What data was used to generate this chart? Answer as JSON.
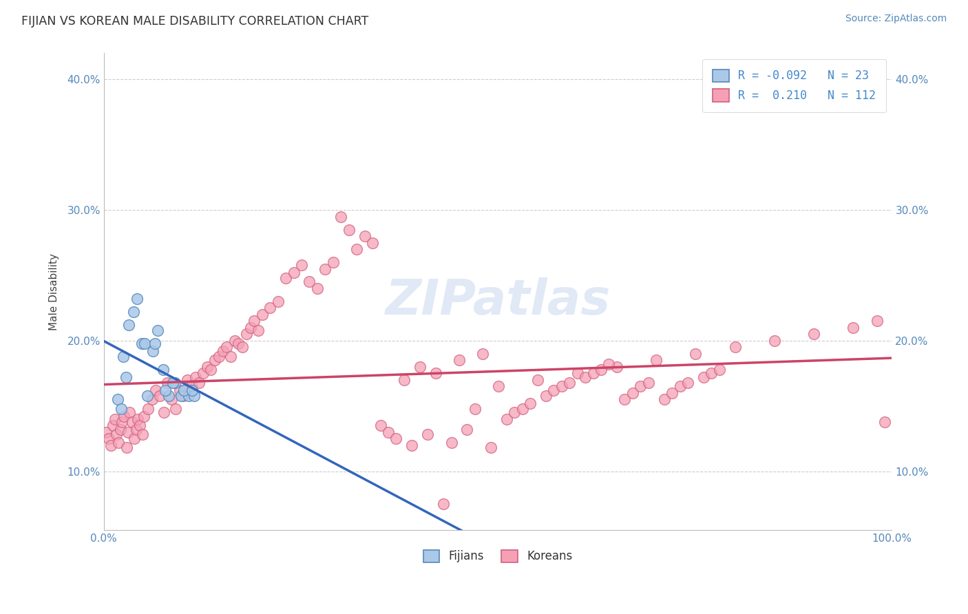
{
  "title": "FIJIAN VS KOREAN MALE DISABILITY CORRELATION CHART",
  "ylabel": "Male Disability",
  "source": "Source: ZipAtlas.com",
  "xlim": [
    0.0,
    1.0
  ],
  "ylim": [
    0.055,
    0.42
  ],
  "yticks": [
    0.1,
    0.2,
    0.3,
    0.4
  ],
  "ytick_labels": [
    "10.0%",
    "20.0%",
    "30.0%",
    "40.0%"
  ],
  "xticks": [
    0.0,
    1.0
  ],
  "xtick_labels": [
    "0.0%",
    "100.0%"
  ],
  "fijian_face": "#aac8e8",
  "fijian_edge": "#5588bb",
  "korean_face": "#f5a0b5",
  "korean_edge": "#d06080",
  "fijian_R": -0.092,
  "fijian_N": 23,
  "korean_R": 0.21,
  "korean_N": 112,
  "fijian_x": [
    0.018,
    0.022,
    0.025,
    0.028,
    0.032,
    0.038,
    0.042,
    0.048,
    0.055,
    0.062,
    0.068,
    0.075,
    0.082,
    0.09,
    0.098,
    0.108,
    0.115,
    0.052,
    0.065,
    0.078,
    0.088,
    0.102,
    0.112
  ],
  "fijian_y": [
    0.155,
    0.148,
    0.188,
    0.172,
    0.212,
    0.222,
    0.232,
    0.198,
    0.158,
    0.192,
    0.208,
    0.178,
    0.158,
    0.168,
    0.158,
    0.158,
    0.158,
    0.198,
    0.198,
    0.162,
    0.168,
    0.162,
    0.162
  ],
  "korean_x": [
    0.003,
    0.006,
    0.009,
    0.012,
    0.014,
    0.016,
    0.019,
    0.021,
    0.023,
    0.026,
    0.029,
    0.031,
    0.033,
    0.036,
    0.039,
    0.041,
    0.043,
    0.046,
    0.049,
    0.051,
    0.056,
    0.061,
    0.066,
    0.071,
    0.076,
    0.081,
    0.086,
    0.091,
    0.096,
    0.101,
    0.106,
    0.111,
    0.116,
    0.121,
    0.126,
    0.131,
    0.136,
    0.141,
    0.146,
    0.151,
    0.156,
    0.161,
    0.166,
    0.171,
    0.176,
    0.181,
    0.186,
    0.191,
    0.196,
    0.201,
    0.211,
    0.221,
    0.231,
    0.241,
    0.251,
    0.261,
    0.271,
    0.281,
    0.291,
    0.301,
    0.311,
    0.321,
    0.331,
    0.341,
    0.351,
    0.381,
    0.401,
    0.421,
    0.451,
    0.481,
    0.501,
    0.551,
    0.601,
    0.651,
    0.701,
    0.751,
    0.801,
    0.851,
    0.901,
    0.951,
    0.981,
    0.991,
    0.361,
    0.371,
    0.391,
    0.411,
    0.441,
    0.461,
    0.471,
    0.431,
    0.491,
    0.511,
    0.521,
    0.531,
    0.541,
    0.561,
    0.571,
    0.581,
    0.591,
    0.611,
    0.621,
    0.631,
    0.641,
    0.661,
    0.671,
    0.681,
    0.691,
    0.711,
    0.721,
    0.731,
    0.741,
    0.761,
    0.771,
    0.781
  ],
  "korean_y": [
    0.13,
    0.125,
    0.12,
    0.135,
    0.14,
    0.128,
    0.122,
    0.132,
    0.138,
    0.142,
    0.118,
    0.13,
    0.145,
    0.138,
    0.125,
    0.132,
    0.14,
    0.135,
    0.128,
    0.142,
    0.148,
    0.155,
    0.162,
    0.158,
    0.145,
    0.168,
    0.155,
    0.148,
    0.162,
    0.158,
    0.17,
    0.165,
    0.172,
    0.168,
    0.175,
    0.18,
    0.178,
    0.185,
    0.188,
    0.192,
    0.195,
    0.188,
    0.2,
    0.198,
    0.195,
    0.205,
    0.21,
    0.215,
    0.208,
    0.22,
    0.225,
    0.23,
    0.248,
    0.252,
    0.258,
    0.245,
    0.24,
    0.255,
    0.26,
    0.295,
    0.285,
    0.27,
    0.28,
    0.275,
    0.135,
    0.17,
    0.18,
    0.175,
    0.185,
    0.19,
    0.165,
    0.17,
    0.175,
    0.18,
    0.185,
    0.19,
    0.195,
    0.2,
    0.205,
    0.21,
    0.215,
    0.138,
    0.13,
    0.125,
    0.12,
    0.128,
    0.122,
    0.132,
    0.148,
    0.075,
    0.118,
    0.14,
    0.145,
    0.148,
    0.152,
    0.158,
    0.162,
    0.165,
    0.168,
    0.172,
    0.175,
    0.178,
    0.182,
    0.155,
    0.16,
    0.165,
    0.168,
    0.155,
    0.16,
    0.165,
    0.168,
    0.172,
    0.175,
    0.178
  ]
}
